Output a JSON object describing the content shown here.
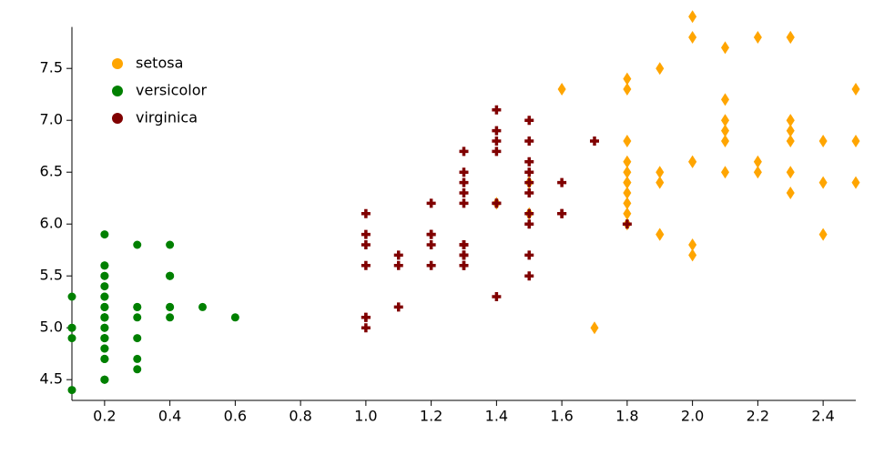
{
  "chart_data": {
    "type": "scatter",
    "xlim": [
      0.1,
      2.5
    ],
    "ylim": [
      4.3,
      7.9
    ],
    "xticks": [
      0.2,
      0.4,
      0.6,
      0.8,
      {
        "value": 1,
        "label": "1.0"
      },
      1.2,
      1.4,
      1.6,
      1.8,
      {
        "value": 2,
        "label": "2.0"
      },
      2.2,
      2.4
    ],
    "yticks": [
      4.5,
      {
        "value": 5,
        "label": "5.0"
      },
      5.5,
      {
        "value": 6,
        "label": "6.0"
      },
      6.5,
      {
        "value": 7,
        "label": "7.0"
      },
      7.5
    ],
    "legend": "top-left",
    "series": [
      {
        "name": "setosa",
        "color": "#ffa500",
        "marker": "diamond",
        "x": [
          2.5,
          1.9,
          2.1,
          1.8,
          2.2,
          2.1,
          1.7,
          1.8,
          1.8,
          2.5,
          2.0,
          1.9,
          2.1,
          2.0,
          2.4,
          2.3,
          1.8,
          2.2,
          2.3,
          1.5,
          2.3,
          2.0,
          2.0,
          1.8,
          2.1,
          1.8,
          1.8,
          1.8,
          2.1,
          1.6,
          1.9,
          2.0,
          2.2,
          1.5,
          1.4,
          2.3,
          2.4,
          1.8,
          1.8,
          2.1,
          2.4,
          2.3,
          1.9,
          2.3,
          2.5,
          2.3,
          1.9,
          2.0,
          2.3,
          1.8
        ],
        "values": [
          6.4,
          5.9,
          7.2,
          6.4,
          6.6,
          7.7,
          5.0,
          7.4,
          6.8,
          7.3,
          6.6,
          6.5,
          6.9,
          5.8,
          5.9,
          6.5,
          6.6,
          7.8,
          7.8,
          6.1,
          7.0,
          5.7,
          7.8,
          6.4,
          6.8,
          7.3,
          6.3,
          6.2,
          6.5,
          7.3,
          7.5,
          8.0,
          6.5,
          6.4,
          6.2,
          7.8,
          6.4,
          6.5,
          6.1,
          7.0,
          6.8,
          7.0,
          5.9,
          6.9,
          6.8,
          6.8,
          6.4,
          6.6,
          6.3,
          6.0
        ]
      },
      {
        "name": "versicolor",
        "color": "#008000",
        "marker": "circle",
        "x": [
          0.2,
          0.2,
          0.2,
          0.2,
          0.2,
          0.4,
          0.3,
          0.2,
          0.2,
          0.1,
          0.2,
          0.2,
          0.1,
          0.1,
          0.2,
          0.4,
          0.4,
          0.3,
          0.3,
          0.3,
          0.2,
          0.4,
          0.2,
          0.5,
          0.2,
          0.2,
          0.4,
          0.2,
          0.2,
          0.2,
          0.2,
          0.4,
          0.1,
          0.2,
          0.2,
          0.2,
          0.2,
          0.1,
          0.2,
          0.2,
          0.3,
          0.3,
          0.2,
          0.6,
          0.4,
          0.3,
          0.2,
          0.2,
          0.2,
          0.2
        ],
        "values": [
          5.2,
          5.0,
          4.8,
          4.7,
          5.1,
          5.5,
          4.7,
          5.1,
          4.5,
          5.0,
          5.5,
          4.9,
          4.9,
          4.4,
          5.9,
          5.8,
          5.5,
          5.2,
          5.8,
          5.2,
          5.5,
          5.2,
          4.7,
          5.2,
          4.9,
          5.1,
          5.1,
          5.3,
          5.3,
          4.8,
          4.9,
          5.5,
          5.3,
          5.6,
          5.0,
          5.1,
          5.6,
          5.0,
          4.5,
          5.2,
          5.1,
          4.6,
          4.5,
          5.1,
          5.2,
          4.9,
          5.2,
          4.7,
          5.4,
          5.1
        ]
      },
      {
        "name": "virginica",
        "color": "#800000",
        "marker": "cross",
        "x": [
          1.4,
          1.5,
          1.5,
          1.3,
          1.5,
          1.3,
          1.6,
          1.0,
          1.3,
          1.4,
          1.0,
          1.5,
          1.0,
          1.4,
          1.3,
          1.4,
          1.5,
          1.0,
          1.5,
          1.1,
          1.8,
          1.3,
          1.5,
          1.2,
          1.3,
          1.4,
          1.4,
          1.7,
          1.5,
          1.0,
          1.1,
          1.0,
          1.2,
          1.6,
          1.5,
          1.6,
          1.5,
          1.3,
          1.3,
          1.3,
          1.2,
          1.4,
          1.2,
          1.0,
          1.3,
          1.2,
          1.3,
          1.3,
          1.1,
          1.3
        ],
        "values": [
          7.1,
          6.5,
          7.0,
          5.6,
          6.6,
          5.8,
          6.4,
          5.0,
          6.7,
          5.3,
          5.1,
          6.0,
          6.1,
          6.2,
          5.7,
          6.8,
          5.7,
          5.9,
          6.3,
          5.7,
          6.0,
          6.2,
          6.4,
          6.2,
          6.5,
          6.7,
          6.9,
          6.8,
          6.1,
          5.8,
          5.6,
          5.6,
          5.9,
          6.1,
          5.5,
          6.1,
          6.8,
          6.4,
          5.7,
          5.6,
          5.6,
          6.2,
          5.9,
          5.1,
          5.7,
          5.8,
          5.8,
          6.3,
          5.2,
          5.8
        ]
      }
    ]
  }
}
